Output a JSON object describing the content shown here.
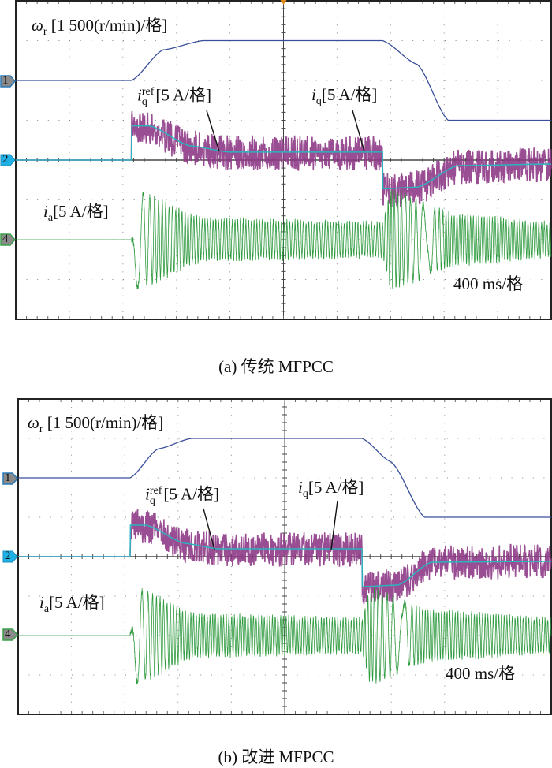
{
  "panels": [
    {
      "caption": "(a) 传统 MFPCC",
      "labels": {
        "speed": {
          "symbol": "ω",
          "sub": "r",
          "scale": "[1 500(r/min)/格]"
        },
        "iq_ref": {
          "symbol": "i",
          "sub": "q",
          "sup": "ref",
          "scale": "[5 A/格]"
        },
        "iq": {
          "symbol": "i",
          "sub": "q",
          "scale": "[5 A/格]"
        },
        "ia": {
          "symbol": "i",
          "sub": "a",
          "scale": "[5 A/格]"
        },
        "timebase": "400 ms/格"
      },
      "channel_markers": [
        "1",
        "2",
        "4"
      ]
    },
    {
      "caption": "(b) 改进 MFPCC",
      "labels": {
        "speed": {
          "symbol": "ω",
          "sub": "r",
          "scale": "[1 500(r/min)/格]"
        },
        "iq_ref": {
          "symbol": "i",
          "sub": "q",
          "sup": "ref",
          "scale": "[5 A/格]"
        },
        "iq": {
          "symbol": "i",
          "sub": "q",
          "scale": "[5 A/格]"
        },
        "ia": {
          "symbol": "i",
          "sub": "a",
          "scale": "[5 A/格]"
        },
        "timebase": "400 ms/格"
      },
      "channel_markers": [
        "1",
        "2",
        "4"
      ]
    }
  ],
  "colors": {
    "speed": "#3a4f9a",
    "iq": "#8e3a86",
    "iq_ref": "#2bb3c0",
    "ia": "#2e9a3e",
    "ch1_marker": "#2a7ab8",
    "ch2_marker": "#1fb1e6",
    "ch4_marker": "#3aa04a"
  },
  "chart_data": [
    {
      "type": "line",
      "time_per_div_ms": 400,
      "divisions": {
        "x": 10,
        "y": 8
      },
      "x_range_ms": [
        0,
        4000
      ],
      "grid": true,
      "series": [
        {
          "name": "ωr",
          "unit": "r/min",
          "per_div": 1500,
          "points": [
            [
              0,
              0
            ],
            [
              865,
              0
            ],
            [
              1100,
              1150
            ],
            [
              1400,
              1500
            ],
            [
              2740,
              1500
            ],
            [
              3000,
              600
            ],
            [
              3230,
              -1500
            ],
            [
              4000,
              -1500
            ]
          ]
        },
        {
          "name": "iq_ref",
          "unit": "A",
          "per_div": 5,
          "points": [
            [
              0,
              0
            ],
            [
              865,
              0
            ],
            [
              866,
              4.3
            ],
            [
              1000,
              4.3
            ],
            [
              1300,
              1.8
            ],
            [
              1600,
              1.0
            ],
            [
              2740,
              1.0
            ],
            [
              2741,
              -3.6
            ],
            [
              3000,
              -3.4
            ],
            [
              3300,
              -0.7
            ],
            [
              4000,
              -0.5
            ]
          ]
        },
        {
          "name": "iq",
          "unit": "A",
          "per_div": 5,
          "points": [
            [
              0,
              0
            ],
            [
              865,
              0
            ],
            [
              866,
              4.3
            ],
            [
              1000,
              4.0
            ],
            [
              1300,
              1.6
            ],
            [
              1600,
              0.9
            ],
            [
              2740,
              0.9
            ],
            [
              2741,
              -3.8
            ],
            [
              3000,
              -3.5
            ],
            [
              3300,
              -0.9
            ],
            [
              4000,
              -0.6
            ]
          ]
        },
        {
          "name": "ia",
          "unit": "A",
          "per_div": 5,
          "envelope_peak": [
            [
              865,
              0
            ],
            [
              900,
              6
            ],
            [
              1400,
              2.5
            ],
            [
              2740,
              2
            ],
            [
              2800,
              6
            ],
            [
              3300,
              3
            ],
            [
              4000,
              2
            ]
          ]
        }
      ]
    },
    {
      "type": "line",
      "time_per_div_ms": 400,
      "divisions": {
        "x": 10,
        "y": 8
      },
      "x_range_ms": [
        0,
        4000
      ],
      "grid": true,
      "series": [
        {
          "name": "ωr",
          "unit": "r/min",
          "per_div": 1500,
          "points": [
            [
              0,
              0
            ],
            [
              840,
              0
            ],
            [
              1050,
              1100
            ],
            [
              1300,
              1500
            ],
            [
              2580,
              1500
            ],
            [
              2800,
              600
            ],
            [
              3050,
              -1500
            ],
            [
              4000,
              -1500
            ]
          ]
        },
        {
          "name": "iq_ref",
          "unit": "A",
          "per_div": 5,
          "points": [
            [
              0,
              0
            ],
            [
              840,
              0
            ],
            [
              841,
              4.0
            ],
            [
              960,
              4.0
            ],
            [
              1250,
              1.7
            ],
            [
              1500,
              1.0
            ],
            [
              2580,
              1.0
            ],
            [
              2581,
              -3.8
            ],
            [
              2850,
              -3.6
            ],
            [
              3100,
              -0.7
            ],
            [
              4000,
              -0.6
            ]
          ]
        },
        {
          "name": "iq",
          "unit": "A",
          "per_div": 5,
          "points": [
            [
              0,
              0
            ],
            [
              840,
              0
            ],
            [
              841,
              4.0
            ],
            [
              960,
              3.8
            ],
            [
              1250,
              1.5
            ],
            [
              1500,
              0.9
            ],
            [
              2580,
              0.9
            ],
            [
              2581,
              -3.9
            ],
            [
              2850,
              -3.7
            ],
            [
              3100,
              -0.8
            ],
            [
              4000,
              -0.6
            ]
          ]
        },
        {
          "name": "ia",
          "unit": "A",
          "per_div": 5,
          "envelope_peak": [
            [
              840,
              0
            ],
            [
              880,
              6
            ],
            [
              1350,
              2.5
            ],
            [
              2580,
              2
            ],
            [
              2640,
              6
            ],
            [
              3100,
              3
            ],
            [
              4000,
              2
            ]
          ]
        }
      ]
    }
  ]
}
